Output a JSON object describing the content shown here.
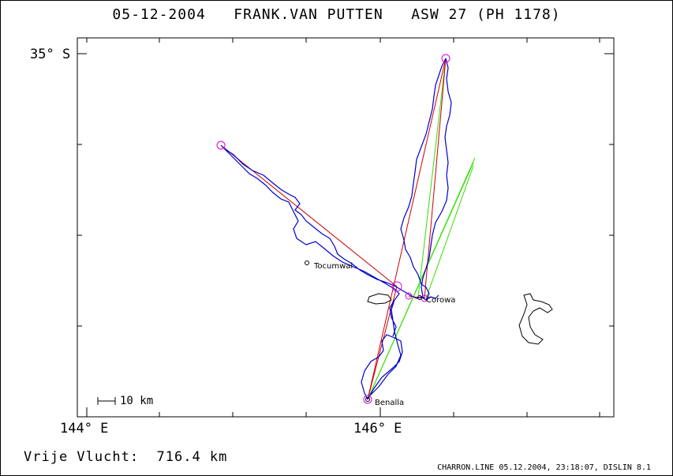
{
  "header": {
    "title": "05-12-2004   FRANK.VAN PUTTEN   ASW 27 (PH 1178)"
  },
  "axes": {
    "lat_label": "35° S",
    "lon_labels": [
      "144° E",
      "146° E"
    ]
  },
  "places": {
    "tocumwal": "Tocumwal",
    "corowa": "Corowa",
    "benalla": "Benalla"
  },
  "scale": {
    "label": "10 km"
  },
  "footer": {
    "distance": "Vrije Vlucht:  716.4 km",
    "credits": "CHARRON.LINE 05.12.2004, 23:18:07, DISLIN 8.1"
  },
  "colors": {
    "track": "#0000cc",
    "leg": "#cc0000",
    "sector": "#33dd00",
    "turnpoint": "#dd00dd",
    "lake": "#000000"
  }
}
